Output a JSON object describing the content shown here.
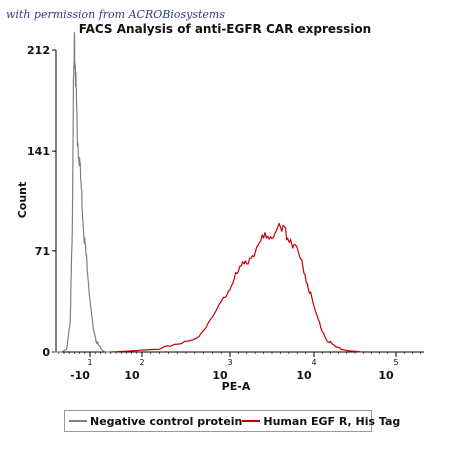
{
  "credit": "with permission from ACROBiosystems",
  "chart_data": {
    "type": "area",
    "title": "FACS Analysis of anti-EGFR CAR expression",
    "xlabel": "PE-A",
    "ylabel": "Count",
    "y_ticks": [
      0,
      71,
      141,
      212
    ],
    "ylim": [
      0,
      212
    ],
    "x_scale": "log (biexponential)",
    "x_ticks": [
      {
        "base": "-10",
        "exp": "1"
      },
      {
        "base": "10",
        "exp": "2"
      },
      {
        "base": "10",
        "exp": "3"
      },
      {
        "base": "10",
        "exp": "4"
      },
      {
        "base": "10",
        "exp": "5"
      }
    ],
    "legend_position": "bottom",
    "grid": false,
    "series": [
      {
        "name": "Negative control protein",
        "color": "#7f7f7f",
        "x_exponent": [
          0.3,
          0.45,
          0.55,
          0.62,
          0.66,
          0.68,
          0.7,
          0.72,
          0.74,
          0.76,
          0.8,
          0.84,
          0.88,
          0.92,
          0.96,
          1.0,
          1.05,
          1.12,
          1.18,
          1.25,
          1.3,
          1.38
        ],
        "counts": [
          0,
          0,
          2,
          20,
          90,
          180,
          212,
          200,
          175,
          150,
          135,
          110,
          85,
          70,
          55,
          35,
          20,
          8,
          3,
          1,
          0,
          0
        ]
      },
      {
        "name": "Human EGF R, His Tag",
        "color": "#c00000",
        "x_exponent": [
          1.4,
          1.9,
          2.2,
          2.45,
          2.65,
          2.8,
          2.95,
          3.05,
          3.15,
          3.25,
          3.35,
          3.45,
          3.55,
          3.65,
          3.72,
          3.8,
          3.88,
          3.96,
          4.05,
          4.15,
          4.25,
          4.4,
          4.6
        ],
        "counts": [
          0,
          1,
          2,
          5,
          12,
          24,
          40,
          52,
          60,
          68,
          76,
          83,
          86,
          84,
          80,
          72,
          58,
          40,
          22,
          9,
          3,
          1,
          0
        ]
      }
    ]
  }
}
